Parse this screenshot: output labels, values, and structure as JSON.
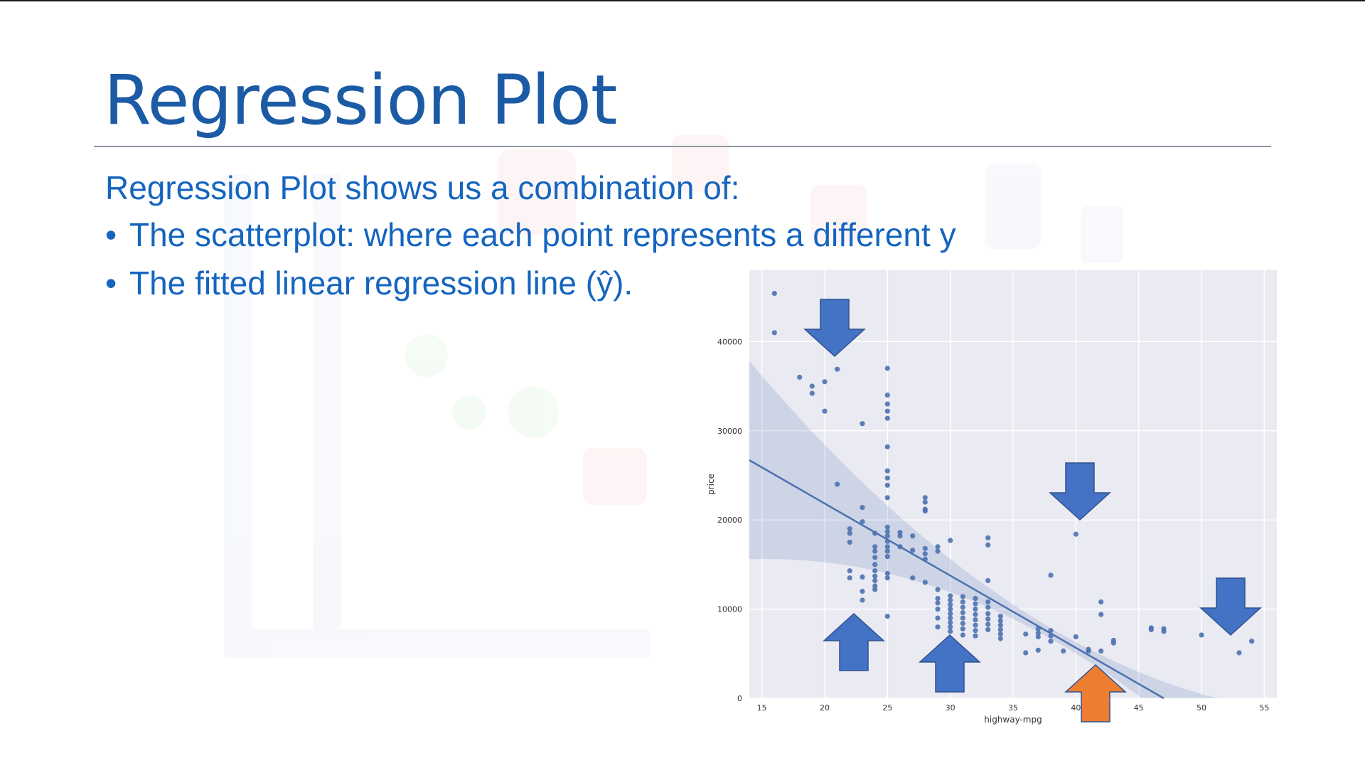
{
  "slide": {
    "title": "Regression Plot",
    "intro": "Regression Plot shows us a combination of:",
    "bullet_symbol": "•",
    "bullets": [
      "The scatterplot: where each point represents a different y",
      "The fitted linear regression line (ŷ)."
    ],
    "colors": {
      "title": "#1b5ba6",
      "text": "#1565c0",
      "blue_arrow": "#4472c4",
      "orange_arrow": "#ed7d31"
    }
  },
  "chart_data": {
    "type": "scatter",
    "title": "",
    "xlabel": "highway-mpg",
    "ylabel": "price",
    "xlim": [
      14,
      56
    ],
    "ylim": [
      0,
      48000
    ],
    "xticks": [
      15,
      20,
      25,
      30,
      35,
      40,
      45,
      50,
      55
    ],
    "yticks": [
      0,
      10000,
      20000,
      30000,
      40000
    ],
    "grid": true,
    "background": "#eaeaf2",
    "point_color": "#4c72b0",
    "points": [
      [
        16,
        45400
      ],
      [
        16,
        41000
      ],
      [
        18,
        36000
      ],
      [
        19,
        35000
      ],
      [
        19,
        34200
      ],
      [
        20,
        35500
      ],
      [
        20,
        32200
      ],
      [
        21,
        36900
      ],
      [
        21,
        24000
      ],
      [
        23,
        30800
      ],
      [
        22,
        19000
      ],
      [
        22,
        18500
      ],
      [
        22,
        17500
      ],
      [
        22,
        14300
      ],
      [
        22,
        13500
      ],
      [
        23,
        21400
      ],
      [
        23,
        19800
      ],
      [
        23,
        13600
      ],
      [
        23,
        12000
      ],
      [
        23,
        11000
      ],
      [
        24,
        18500
      ],
      [
        24,
        17000
      ],
      [
        24,
        16500
      ],
      [
        24,
        15800
      ],
      [
        24,
        15000
      ],
      [
        24,
        14300
      ],
      [
        24,
        13700
      ],
      [
        24,
        13200
      ],
      [
        24,
        12600
      ],
      [
        24,
        12200
      ],
      [
        25,
        37000
      ],
      [
        25,
        34000
      ],
      [
        25,
        33000
      ],
      [
        25,
        32200
      ],
      [
        25,
        31400
      ],
      [
        25,
        28200
      ],
      [
        25,
        25500
      ],
      [
        25,
        24700
      ],
      [
        25,
        23900
      ],
      [
        25,
        22500
      ],
      [
        25,
        19200
      ],
      [
        25,
        18700
      ],
      [
        25,
        18200
      ],
      [
        25,
        17600
      ],
      [
        25,
        17000
      ],
      [
        25,
        16500
      ],
      [
        25,
        15900
      ],
      [
        25,
        14000
      ],
      [
        25,
        13500
      ],
      [
        25,
        9200
      ],
      [
        26,
        18600
      ],
      [
        26,
        18200
      ],
      [
        26,
        17000
      ],
      [
        27,
        18200
      ],
      [
        27,
        16600
      ],
      [
        27,
        13500
      ],
      [
        28,
        22500
      ],
      [
        28,
        22000
      ],
      [
        28,
        21200
      ],
      [
        28,
        21000
      ],
      [
        28,
        16800
      ],
      [
        28,
        16200
      ],
      [
        28,
        15600
      ],
      [
        28,
        13000
      ],
      [
        29,
        17000
      ],
      [
        29,
        16500
      ],
      [
        29,
        12200
      ],
      [
        29,
        11200
      ],
      [
        29,
        10700
      ],
      [
        29,
        10000
      ],
      [
        29,
        9000
      ],
      [
        29,
        8000
      ],
      [
        30,
        17700
      ],
      [
        30,
        11500
      ],
      [
        30,
        11000
      ],
      [
        30,
        10500
      ],
      [
        30,
        10000
      ],
      [
        30,
        9500
      ],
      [
        30,
        9000
      ],
      [
        30,
        8500
      ],
      [
        30,
        8000
      ],
      [
        30,
        7500
      ],
      [
        31,
        11400
      ],
      [
        31,
        10800
      ],
      [
        31,
        10200
      ],
      [
        31,
        9600
      ],
      [
        31,
        9000
      ],
      [
        31,
        8400
      ],
      [
        31,
        7800
      ],
      [
        31,
        7100
      ],
      [
        32,
        11200
      ],
      [
        32,
        10600
      ],
      [
        32,
        10000
      ],
      [
        32,
        9400
      ],
      [
        32,
        8800
      ],
      [
        32,
        8200
      ],
      [
        32,
        7600
      ],
      [
        32,
        7000
      ],
      [
        33,
        18000
      ],
      [
        33,
        17200
      ],
      [
        33,
        13200
      ],
      [
        33,
        10800
      ],
      [
        33,
        10200
      ],
      [
        33,
        9500
      ],
      [
        33,
        8900
      ],
      [
        33,
        8300
      ],
      [
        33,
        7700
      ],
      [
        34,
        9200
      ],
      [
        34,
        8700
      ],
      [
        34,
        8200
      ],
      [
        34,
        7700
      ],
      [
        34,
        7200
      ],
      [
        34,
        6700
      ],
      [
        36,
        5100
      ],
      [
        36,
        7200
      ],
      [
        37,
        7800
      ],
      [
        37,
        7300
      ],
      [
        37,
        6900
      ],
      [
        37,
        5400
      ],
      [
        38,
        13800
      ],
      [
        38,
        7600
      ],
      [
        38,
        7000
      ],
      [
        38,
        6400
      ],
      [
        39,
        5300
      ],
      [
        40,
        18400
      ],
      [
        40,
        6900
      ],
      [
        41,
        5500
      ],
      [
        41,
        5300
      ],
      [
        42,
        10800
      ],
      [
        42,
        9400
      ],
      [
        42,
        5300
      ],
      [
        43,
        6500
      ],
      [
        43,
        6200
      ],
      [
        46,
        7900
      ],
      [
        46,
        7700
      ],
      [
        47,
        7800
      ],
      [
        47,
        7500
      ],
      [
        50,
        7100
      ],
      [
        53,
        5100
      ],
      [
        54,
        6400
      ]
    ],
    "regression": {
      "x": [
        14,
        47
      ],
      "y": [
        26700,
        0
      ]
    }
  }
}
